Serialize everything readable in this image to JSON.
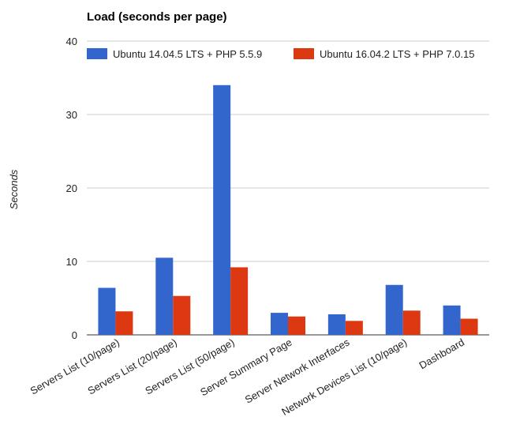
{
  "chart_data": {
    "type": "bar",
    "title": "Load (seconds per page)",
    "xlabel": "",
    "ylabel": "Seconds",
    "ylim": [
      0,
      40
    ],
    "yticks": [
      0,
      10,
      20,
      30,
      40
    ],
    "grid": true,
    "legend_position": "top",
    "categories": [
      "Servers List (10/page)",
      "Servers List (20/page)",
      "Servers List (50/page)",
      "Server Summary Page",
      "Server Network Interfaces",
      "Network Devices List (10/page)",
      "Dashboard"
    ],
    "series": [
      {
        "name": "Ubuntu 14.04.5 LTS + PHP 5.5.9",
        "color": "#3366cc",
        "values": [
          6.4,
          10.5,
          34.0,
          3.0,
          2.8,
          6.8,
          4.0
        ]
      },
      {
        "name": "Ubuntu 16.04.2 LTS + PHP 7.0.15",
        "color": "#dc3912",
        "values": [
          3.2,
          5.3,
          9.2,
          2.5,
          1.9,
          3.3,
          2.2
        ]
      }
    ]
  }
}
